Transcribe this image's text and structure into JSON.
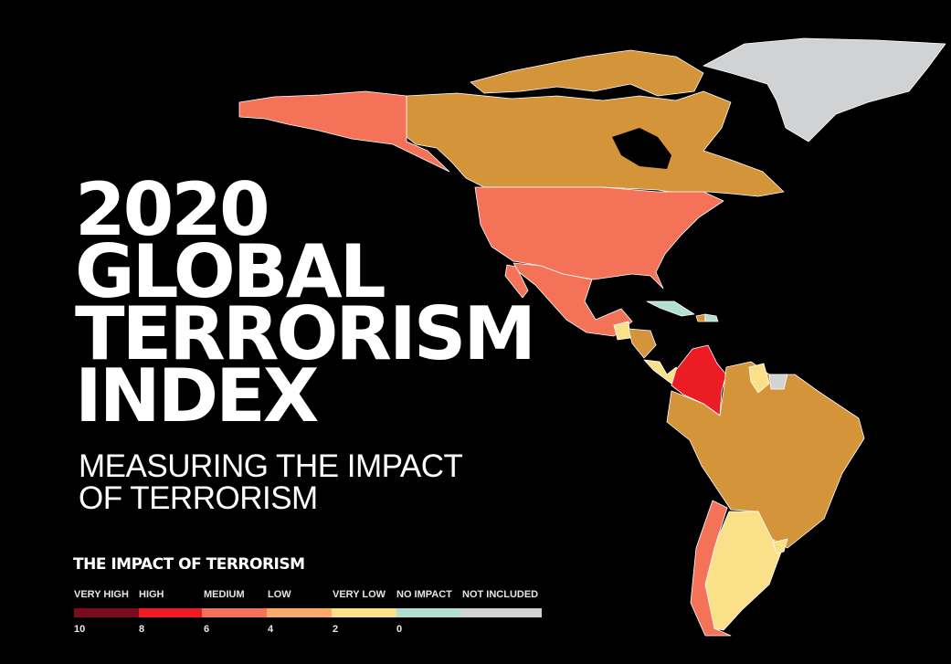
{
  "title": {
    "lines": [
      "2020",
      "GLOBAL",
      "TERRORISM",
      "INDEX"
    ]
  },
  "subtitle": {
    "lines": [
      "MEASURING THE IMPACT",
      "OF TERRORISM"
    ]
  },
  "legend": {
    "title": "THE IMPACT OF TERRORISM",
    "categories": [
      {
        "label": "VERY HIGH",
        "color": "#7b0c20",
        "tick": "10"
      },
      {
        "label": "HIGH",
        "color": "#ec1c24",
        "tick": "8"
      },
      {
        "label": "MEDIUM",
        "color": "#f47358",
        "tick": "6"
      },
      {
        "label": "LOW",
        "color": "#faab6c",
        "tick": "4"
      },
      {
        "label": "VERY LOW",
        "color": "#fbe08a",
        "tick": "2"
      },
      {
        "label": "NO IMPACT",
        "color": "#b2dfd2",
        "tick": "0"
      },
      {
        "label": "NOT INCLUDED",
        "color": "#d1d2d4",
        "tick": ""
      }
    ]
  },
  "map": {
    "region_colors": {
      "brown": "#d4943a",
      "medium": "#f47358",
      "high": "#ec1c24",
      "very_low": "#fbe08a",
      "no_impact": "#b2dfd2",
      "not_included": "#d1d2d4"
    }
  }
}
